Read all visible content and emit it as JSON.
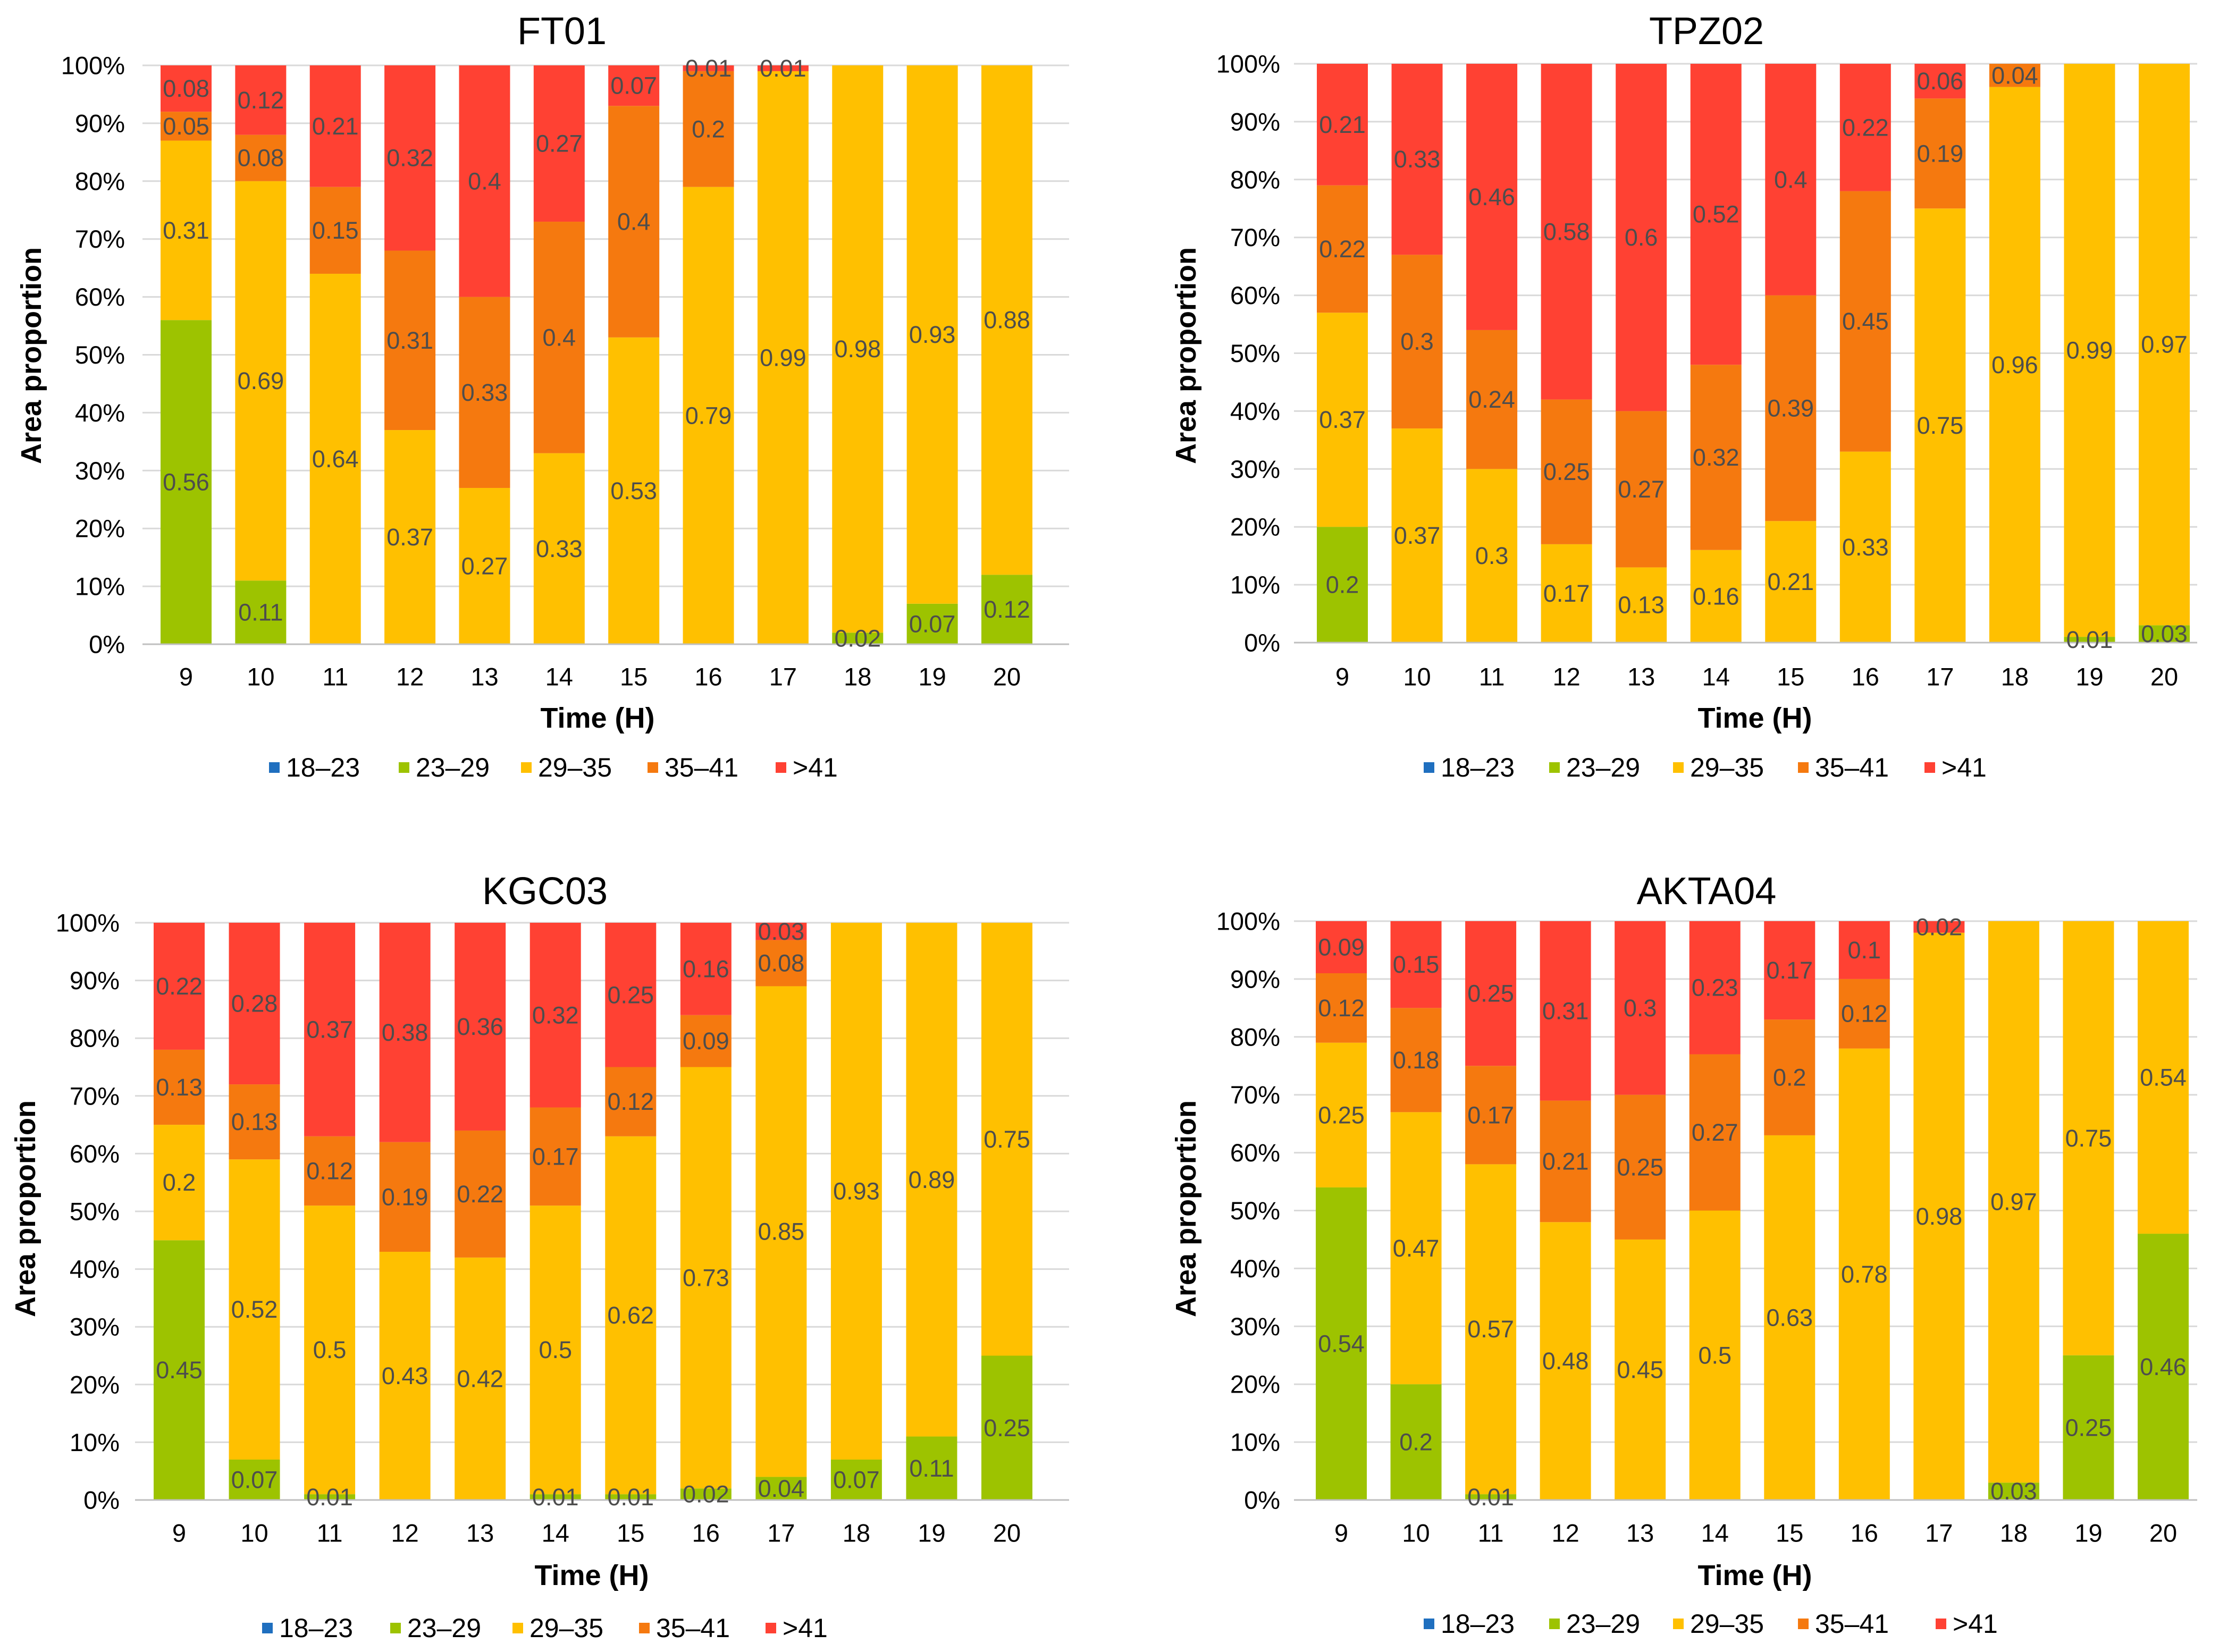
{
  "chart_data": [
    {
      "type": "bar",
      "stacked": true,
      "title": "FT01",
      "xlabel": "Time (H)",
      "ylabel": "Area proportion",
      "ylim": [
        0,
        1
      ],
      "yticks": [
        "0%",
        "10%",
        "20%",
        "30%",
        "40%",
        "50%",
        "60%",
        "70%",
        "80%",
        "90%",
        "100%"
      ],
      "categories": [
        "9",
        "10",
        "11",
        "12",
        "13",
        "14",
        "15",
        "16",
        "17",
        "18",
        "19",
        "20"
      ],
      "legend_position": "bottom",
      "series": [
        {
          "name": "18–23",
          "color": "#1F6FBF",
          "values": [
            0,
            0,
            0,
            0,
            0,
            0,
            0,
            0,
            0,
            0,
            0,
            0
          ]
        },
        {
          "name": "23–29",
          "color": "#9DC300",
          "values": [
            0.56,
            0.11,
            0,
            0,
            0,
            0,
            0,
            0,
            0,
            0.02,
            0.07,
            0.12
          ]
        },
        {
          "name": "29–35",
          "color": "#FFC000",
          "values": [
            0.31,
            0.69,
            0.64,
            0.37,
            0.27,
            0.33,
            0.53,
            0.79,
            0.99,
            0.98,
            0.93,
            0.88
          ]
        },
        {
          "name": "35–41",
          "color": "#F5790F",
          "values": [
            0.05,
            0.08,
            0.15,
            0.31,
            0.33,
            0.4,
            0.4,
            0.2,
            0,
            0,
            0,
            0
          ]
        },
        {
          "name": ">41",
          "color": "#FF4133",
          "values": [
            0.08,
            0.12,
            0.21,
            0.32,
            0.4,
            0.27,
            0.07,
            0.01,
            0.01,
            0,
            0,
            0
          ]
        }
      ]
    },
    {
      "type": "bar",
      "stacked": true,
      "title": "TPZ02",
      "xlabel": "Time (H)",
      "ylabel": "Area proportion",
      "ylim": [
        0,
        1
      ],
      "yticks": [
        "0%",
        "10%",
        "20%",
        "30%",
        "40%",
        "50%",
        "60%",
        "70%",
        "80%",
        "90%",
        "100%"
      ],
      "categories": [
        "9",
        "10",
        "11",
        "12",
        "13",
        "14",
        "15",
        "16",
        "17",
        "18",
        "19",
        "20"
      ],
      "legend_position": "bottom",
      "series": [
        {
          "name": "18–23",
          "color": "#1F6FBF",
          "values": [
            0,
            0,
            0,
            0,
            0,
            0,
            0,
            0,
            0,
            0,
            0,
            0
          ]
        },
        {
          "name": "23–29",
          "color": "#9DC300",
          "values": [
            0.2,
            0,
            0,
            0,
            0,
            0,
            0,
            0,
            0,
            0,
            0.01,
            0.03
          ]
        },
        {
          "name": "29–35",
          "color": "#FFC000",
          "values": [
            0.37,
            0.37,
            0.3,
            0.17,
            0.13,
            0.16,
            0.21,
            0.33,
            0.75,
            0.96,
            0.99,
            0.97
          ]
        },
        {
          "name": "35–41",
          "color": "#F5790F",
          "values": [
            0.22,
            0.3,
            0.24,
            0.25,
            0.27,
            0.32,
            0.39,
            0.45,
            0.19,
            0.04,
            0,
            0
          ]
        },
        {
          "name": ">41",
          "color": "#FF4133",
          "values": [
            0.21,
            0.33,
            0.46,
            0.58,
            0.6,
            0.52,
            0.4,
            0.22,
            0.06,
            0,
            0,
            0
          ]
        }
      ]
    },
    {
      "type": "bar",
      "stacked": true,
      "title": "KGC03",
      "xlabel": "Time (H)",
      "ylabel": "Area proportion",
      "ylim": [
        0,
        1
      ],
      "yticks": [
        "0%",
        "10%",
        "20%",
        "30%",
        "40%",
        "50%",
        "60%",
        "70%",
        "80%",
        "90%",
        "100%"
      ],
      "categories": [
        "9",
        "10",
        "11",
        "12",
        "13",
        "14",
        "15",
        "16",
        "17",
        "18",
        "19",
        "20"
      ],
      "legend_position": "bottom",
      "series": [
        {
          "name": "18–23",
          "color": "#1F6FBF",
          "values": [
            0,
            0,
            0,
            0,
            0,
            0,
            0,
            0,
            0,
            0,
            0,
            0
          ]
        },
        {
          "name": "23–29",
          "color": "#9DC300",
          "values": [
            0.45,
            0.07,
            0.01,
            0,
            0,
            0.01,
            0.01,
            0.02,
            0.04,
            0.07,
            0.11,
            0.25
          ]
        },
        {
          "name": "29–35",
          "color": "#FFC000",
          "values": [
            0.2,
            0.52,
            0.5,
            0.43,
            0.42,
            0.5,
            0.62,
            0.73,
            0.85,
            0.93,
            0.89,
            0.75
          ]
        },
        {
          "name": "35–41",
          "color": "#F5790F",
          "values": [
            0.13,
            0.13,
            0.12,
            0.19,
            0.22,
            0.17,
            0.12,
            0.09,
            0.08,
            0,
            0,
            0
          ]
        },
        {
          "name": ">41",
          "color": "#FF4133",
          "values": [
            0.22,
            0.28,
            0.37,
            0.38,
            0.36,
            0.32,
            0.25,
            0.16,
            0.03,
            0,
            0,
            0
          ]
        }
      ]
    },
    {
      "type": "bar",
      "stacked": true,
      "title": "AKTA04",
      "xlabel": "Time (H)",
      "ylabel": "Area proportion",
      "ylim": [
        0,
        1
      ],
      "yticks": [
        "0%",
        "10%",
        "20%",
        "30%",
        "40%",
        "50%",
        "60%",
        "70%",
        "80%",
        "90%",
        "100%"
      ],
      "categories": [
        "9",
        "10",
        "11",
        "12",
        "13",
        "14",
        "15",
        "16",
        "17",
        "18",
        "19",
        "20"
      ],
      "legend_position": "bottom",
      "series": [
        {
          "name": "18–23",
          "color": "#1F6FBF",
          "values": [
            0,
            0,
            0,
            0,
            0,
            0,
            0,
            0,
            0,
            0,
            0,
            0
          ]
        },
        {
          "name": "23–29",
          "color": "#9DC300",
          "values": [
            0.54,
            0.2,
            0.01,
            0,
            0,
            0,
            0,
            0,
            0,
            0.03,
            0.25,
            0.46
          ]
        },
        {
          "name": "29–35",
          "color": "#FFC000",
          "values": [
            0.25,
            0.47,
            0.57,
            0.48,
            0.45,
            0.5,
            0.63,
            0.78,
            0.98,
            0.97,
            0.75,
            0.54
          ]
        },
        {
          "name": "35–41",
          "color": "#F5790F",
          "values": [
            0.12,
            0.18,
            0.17,
            0.21,
            0.25,
            0.27,
            0.2,
            0.12,
            0,
            0,
            0,
            0
          ]
        },
        {
          "name": ">41",
          "color": "#FF4133",
          "values": [
            0.09,
            0.15,
            0.25,
            0.31,
            0.3,
            0.23,
            0.17,
            0.1,
            0.02,
            0,
            0,
            0
          ]
        }
      ]
    }
  ]
}
